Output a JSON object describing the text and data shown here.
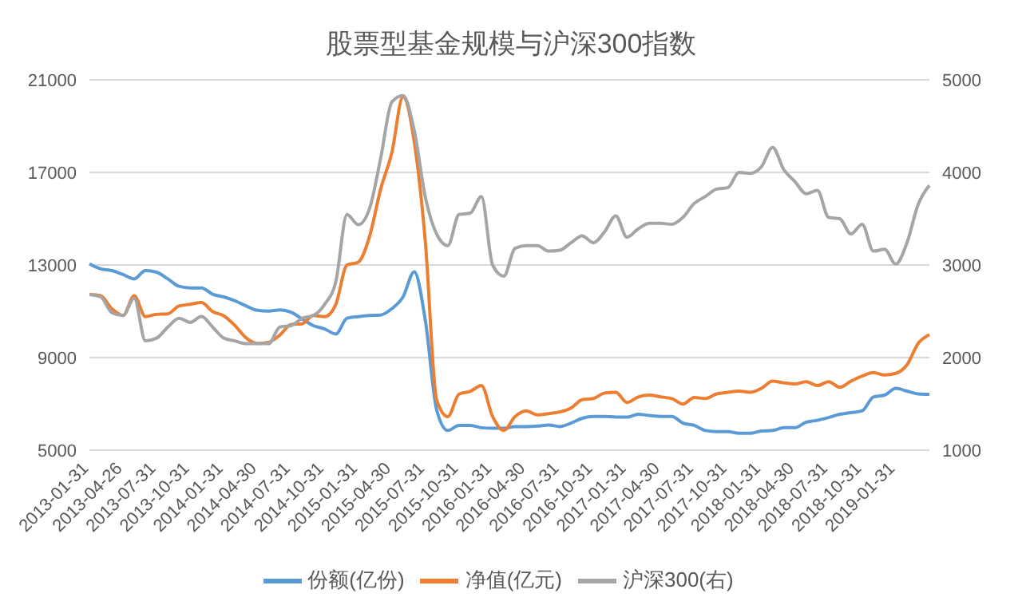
{
  "chart_data": {
    "type": "line",
    "title": "股票型基金规模与沪深300指数",
    "categories": [
      "2013-01-31",
      null,
      null,
      "2013-04-26",
      null,
      null,
      "2013-07-31",
      null,
      null,
      "2013-10-31",
      null,
      null,
      "2014-01-31",
      null,
      null,
      "2014-04-30",
      null,
      null,
      "2014-07-31",
      null,
      null,
      "2014-10-31",
      null,
      null,
      "2015-01-31",
      null,
      null,
      "2015-04-30",
      null,
      null,
      "2015-07-31",
      null,
      null,
      "2015-10-31",
      null,
      null,
      "2016-01-31",
      null,
      null,
      "2016-04-30",
      null,
      null,
      "2016-07-31",
      null,
      null,
      "2016-10-31",
      null,
      null,
      "2017-01-31",
      null,
      null,
      "2017-04-30",
      null,
      null,
      "2017-07-31",
      null,
      null,
      "2017-10-31",
      null,
      null,
      "2018-01-31",
      null,
      null,
      "2018-04-30",
      null,
      null,
      "2018-07-31",
      null,
      null,
      "2018-10-31",
      null,
      null,
      "2019-01-31",
      null,
      null,
      null
    ],
    "series": [
      {
        "name": "份额(亿份)",
        "color": "#5b9bd5",
        "values": [
          13050,
          12830,
          12760,
          12590,
          12400,
          12760,
          12690,
          12400,
          12080,
          12010,
          12010,
          11740,
          11620,
          11450,
          11230,
          11040,
          11010,
          11060,
          10960,
          10670,
          10380,
          10240,
          10020,
          10700,
          10770,
          10820,
          10840,
          11110,
          11620,
          12710,
          10580,
          6750,
          5850,
          6070,
          6070,
          5970,
          5950,
          5950,
          6020,
          6020,
          6040,
          6090,
          6020,
          6170,
          6380,
          6460,
          6460,
          6430,
          6430,
          6550,
          6500,
          6460,
          6460,
          6170,
          6070,
          5850,
          5800,
          5800,
          5730,
          5730,
          5830,
          5850,
          5970,
          5970,
          6210,
          6290,
          6410,
          6550,
          6620,
          6700,
          7300,
          7380,
          7670,
          7550,
          7430,
          7410
        ]
      },
      {
        "name": "净值(亿元)",
        "color": "#ed7d31",
        "values": [
          11720,
          11670,
          11110,
          10820,
          11670,
          10770,
          10870,
          10890,
          11230,
          11300,
          11380,
          10990,
          10800,
          10380,
          9850,
          9610,
          9660,
          9970,
          10430,
          10460,
          10820,
          10770,
          11300,
          13000,
          13120,
          14210,
          16270,
          17850,
          20270,
          18330,
          13970,
          7180,
          6450,
          7420,
          7540,
          7790,
          6450,
          5850,
          6450,
          6700,
          6530,
          6580,
          6650,
          6820,
          7180,
          7230,
          7470,
          7500,
          7060,
          7300,
          7380,
          7300,
          7230,
          6990,
          7280,
          7230,
          7430,
          7500,
          7550,
          7500,
          7670,
          7980,
          7910,
          7860,
          7960,
          7790,
          7960,
          7720,
          7980,
          8200,
          8350,
          8250,
          8320,
          8690,
          9610,
          9990
        ]
      },
      {
        "name": "沪深300(右)",
        "color": "#a5a5a5",
        "axis": "y2",
        "values": [
          2680,
          2655,
          2485,
          2455,
          2640,
          2180,
          2210,
          2330,
          2425,
          2380,
          2445,
          2330,
          2210,
          2180,
          2150,
          2150,
          2150,
          2330,
          2345,
          2425,
          2455,
          2575,
          2820,
          3545,
          3435,
          3605,
          4150,
          4760,
          4830,
          4455,
          3730,
          3335,
          3210,
          3545,
          3560,
          3740,
          3000,
          2880,
          3180,
          3210,
          3210,
          3150,
          3160,
          3240,
          3315,
          3240,
          3360,
          3530,
          3300,
          3390,
          3450,
          3450,
          3440,
          3515,
          3665,
          3740,
          3820,
          3835,
          4000,
          3990,
          4060,
          4270,
          4030,
          3900,
          3770,
          3805,
          3515,
          3500,
          3335,
          3440,
          3150,
          3170,
          3010,
          3240,
          3655,
          3860
        ]
      }
    ],
    "ylim": [
      5000,
      21000
    ],
    "yticks": [
      5000,
      9000,
      13000,
      17000,
      21000
    ],
    "y2lim": [
      1000,
      5000
    ],
    "y2ticks": [
      1000,
      2000,
      3000,
      4000,
      5000
    ],
    "grid": "y",
    "legend": "bottom"
  }
}
